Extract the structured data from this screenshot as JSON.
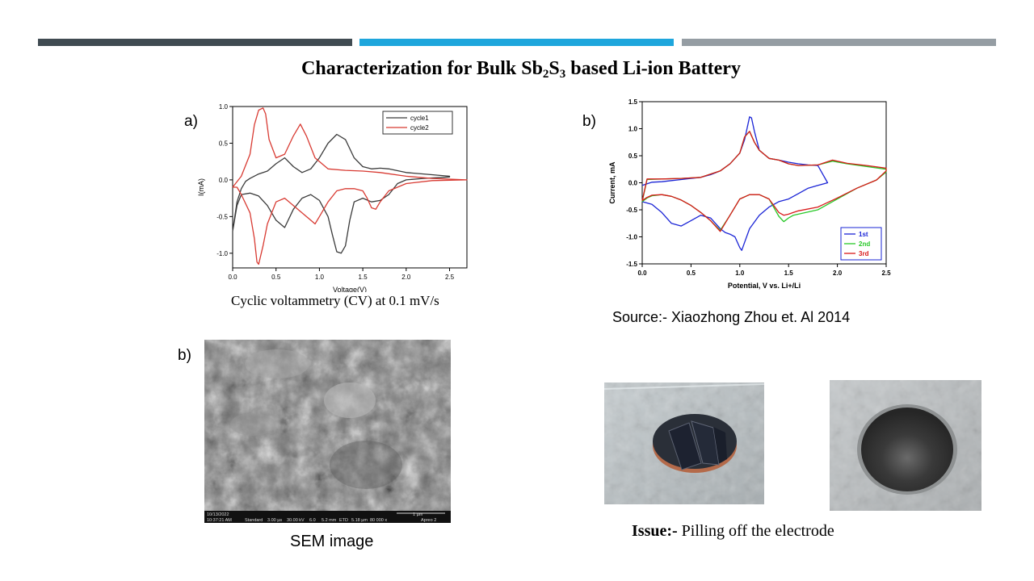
{
  "colors": {
    "bar1": "#404b52",
    "bar2": "#1ea6dc",
    "bar3": "#959da3",
    "cycle1": "#3a3a3a",
    "cycle2": "#d83a32",
    "run1": "#1a24d6",
    "run2": "#28c828",
    "run3": "#d81818"
  },
  "title": {
    "main": "Characterization for Bulk Sb",
    "sub1": "2",
    "mid": "S",
    "sub2": "3",
    "tail": " based Li-ion Battery"
  },
  "labels": {
    "a": "a)",
    "b1": "b)",
    "b2": "b)"
  },
  "captions": {
    "cv": "Cyclic voltammetry (CV) at 0.1 mV/s",
    "source": "Source:- Xiaozhong Zhou et. Al 2014",
    "sem": "SEM image",
    "issue_bold": "Issue:-",
    "issue_text": " Pilling off the electrode"
  },
  "sem_bar": {
    "date": "10/13/2022",
    "time": "10:37:21 AM",
    "mode": "Standard",
    "dwell": "3.00 µs",
    "hv": "30.00 kV",
    "spot": "6.0",
    "wd": "5.2 mm",
    "det": "ETD",
    "hfw": "5.18 µm",
    "mag": "80 000 x",
    "scale": "1 µm",
    "brand": "Apreo 2"
  },
  "chart_data": [
    {
      "type": "line",
      "xlabel": "Voltage(V)",
      "ylabel": "I(mA)",
      "xlim": [
        0,
        2.7
      ],
      "ylim": [
        -1.2,
        1.0
      ],
      "xticks": [
        "0.0",
        "0.5",
        "1.0",
        "1.5",
        "2.0",
        "2.5"
      ],
      "yticks": [
        "1.0",
        "0.5",
        "0.0",
        "-0.5",
        "-1.0"
      ],
      "legend": "top-right",
      "series": [
        {
          "name": "cycle1",
          "x": [
            0,
            0.05,
            0.1,
            0.15,
            0.2,
            0.3,
            0.4,
            0.5,
            0.6,
            0.7,
            0.8,
            0.9,
            1.0,
            1.1,
            1.2,
            1.3,
            1.4,
            1.5,
            1.6,
            1.7,
            1.8,
            2.0,
            2.2,
            2.5,
            2.5,
            2.2,
            2.0,
            1.9,
            1.8,
            1.7,
            1.6,
            1.5,
            1.4,
            1.35,
            1.3,
            1.25,
            1.2,
            1.15,
            1.1,
            1.0,
            0.9,
            0.8,
            0.7,
            0.6,
            0.5,
            0.4,
            0.3,
            0.2,
            0.1,
            0.05,
            0
          ],
          "y": [
            -0.7,
            -0.3,
            -0.12,
            -0.02,
            0.02,
            0.08,
            0.12,
            0.22,
            0.3,
            0.18,
            0.1,
            0.15,
            0.3,
            0.5,
            0.62,
            0.55,
            0.3,
            0.18,
            0.15,
            0.16,
            0.15,
            0.1,
            0.08,
            0.05,
            0.04,
            0.02,
            0.0,
            -0.05,
            -0.2,
            -0.28,
            -0.3,
            -0.25,
            -0.3,
            -0.55,
            -0.9,
            -1.0,
            -0.98,
            -0.75,
            -0.5,
            -0.28,
            -0.2,
            -0.25,
            -0.4,
            -0.65,
            -0.55,
            -0.35,
            -0.22,
            -0.18,
            -0.2,
            -0.35,
            -0.7
          ]
        },
        {
          "name": "cycle2",
          "x": [
            0,
            0.1,
            0.2,
            0.25,
            0.3,
            0.35,
            0.38,
            0.42,
            0.5,
            0.6,
            0.7,
            0.78,
            0.85,
            0.95,
            1.1,
            1.3,
            1.5,
            1.7,
            2.0,
            2.3,
            2.7,
            2.7,
            2.3,
            2.0,
            1.8,
            1.7,
            1.65,
            1.6,
            1.55,
            1.5,
            1.4,
            1.3,
            1.2,
            1.1,
            1.0,
            0.95,
            0.9,
            0.8,
            0.7,
            0.6,
            0.5,
            0.4,
            0.35,
            0.3,
            0.28,
            0.25,
            0.2,
            0.1,
            0.05,
            0
          ],
          "y": [
            -0.1,
            0.05,
            0.35,
            0.75,
            0.95,
            0.98,
            0.9,
            0.55,
            0.3,
            0.35,
            0.6,
            0.76,
            0.6,
            0.3,
            0.15,
            0.13,
            0.12,
            0.1,
            0.05,
            0.02,
            0.0,
            0.0,
            -0.01,
            -0.05,
            -0.15,
            -0.3,
            -0.4,
            -0.38,
            -0.25,
            -0.15,
            -0.12,
            -0.12,
            -0.15,
            -0.3,
            -0.5,
            -0.6,
            -0.55,
            -0.45,
            -0.35,
            -0.25,
            -0.3,
            -0.6,
            -0.9,
            -1.15,
            -1.12,
            -0.8,
            -0.45,
            -0.2,
            -0.1,
            -0.1
          ]
        }
      ]
    },
    {
      "type": "line",
      "xlabel": "Potential, V vs. Li+/Li",
      "ylabel": "Current, mA",
      "xlim": [
        0,
        2.5
      ],
      "ylim": [
        -1.5,
        1.5
      ],
      "xticks": [
        "0.0",
        "0.5",
        "1.0",
        "1.5",
        "2.0",
        "2.5"
      ],
      "yticks": [
        "1.5",
        "1.0",
        "0.5",
        "0.0",
        "-0.5",
        "-1.0",
        "-1.5"
      ],
      "legend": "bottom-right",
      "series": [
        {
          "name": "1st",
          "x": [
            0,
            0.1,
            0.2,
            0.3,
            0.4,
            0.5,
            0.6,
            0.7,
            0.8,
            0.85,
            0.9,
            0.95,
            1.0,
            1.02,
            1.05,
            1.1,
            1.2,
            1.3,
            1.4,
            1.5,
            1.6,
            1.7,
            1.8,
            1.9,
            1.9,
            1.8,
            1.7,
            1.6,
            1.5,
            1.4,
            1.3,
            1.2,
            1.15,
            1.12,
            1.1,
            1.05,
            1.0,
            0.9,
            0.8,
            0.7,
            0.6,
            0.5,
            0.4,
            0.3,
            0.2,
            0.1,
            0
          ],
          "y": [
            -0.35,
            -0.4,
            -0.55,
            -0.75,
            -0.8,
            -0.7,
            -0.6,
            -0.65,
            -0.85,
            -0.92,
            -0.95,
            -1.0,
            -1.2,
            -1.25,
            -1.1,
            -0.85,
            -0.6,
            -0.45,
            -0.35,
            -0.3,
            -0.2,
            -0.1,
            -0.05,
            0.0,
            0.0,
            0.32,
            0.33,
            0.35,
            0.38,
            0.42,
            0.45,
            0.6,
            0.95,
            1.2,
            1.22,
            0.8,
            0.55,
            0.35,
            0.22,
            0.15,
            0.1,
            0.08,
            0.06,
            0.04,
            0.02,
            0.01,
            -0.05
          ]
        },
        {
          "name": "2nd",
          "x": [
            0,
            0.05,
            0.1,
            0.2,
            0.3,
            0.4,
            0.5,
            0.6,
            0.7,
            0.8,
            0.9,
            1.0,
            1.1,
            1.2,
            1.3,
            1.4,
            1.45,
            1.5,
            1.55,
            1.6,
            1.8,
            2.0,
            2.2,
            2.4,
            2.5,
            2.5,
            2.3,
            2.1,
            1.95,
            1.8,
            1.6,
            1.5,
            1.4,
            1.3,
            1.2,
            1.15,
            1.1,
            1.05,
            1.0,
            0.9,
            0.8,
            0.6,
            0.4,
            0.2,
            0.05,
            0
          ],
          "y": [
            -0.35,
            -0.28,
            -0.24,
            -0.22,
            -0.25,
            -0.32,
            -0.42,
            -0.55,
            -0.7,
            -0.88,
            -0.6,
            -0.3,
            -0.22,
            -0.22,
            -0.3,
            -0.62,
            -0.72,
            -0.65,
            -0.6,
            -0.58,
            -0.5,
            -0.3,
            -0.1,
            0.05,
            0.2,
            0.25,
            0.3,
            0.35,
            0.4,
            0.33,
            0.32,
            0.35,
            0.42,
            0.45,
            0.6,
            0.75,
            0.95,
            0.85,
            0.55,
            0.35,
            0.22,
            0.1,
            0.08,
            0.07,
            0.06,
            -0.35
          ]
        },
        {
          "name": "3rd",
          "x": [
            0,
            0.05,
            0.1,
            0.2,
            0.3,
            0.4,
            0.5,
            0.6,
            0.7,
            0.8,
            0.9,
            1.0,
            1.1,
            1.2,
            1.3,
            1.4,
            1.45,
            1.5,
            1.55,
            1.6,
            1.8,
            2.0,
            2.2,
            2.4,
            2.5,
            2.5,
            2.3,
            2.1,
            1.95,
            1.8,
            1.6,
            1.5,
            1.4,
            1.3,
            1.2,
            1.15,
            1.1,
            1.05,
            1.0,
            0.9,
            0.8,
            0.6,
            0.4,
            0.2,
            0.05,
            0
          ],
          "y": [
            -0.33,
            -0.27,
            -0.23,
            -0.22,
            -0.25,
            -0.32,
            -0.42,
            -0.55,
            -0.7,
            -0.9,
            -0.6,
            -0.3,
            -0.22,
            -0.22,
            -0.3,
            -0.55,
            -0.6,
            -0.58,
            -0.55,
            -0.52,
            -0.45,
            -0.28,
            -0.1,
            0.05,
            0.22,
            0.27,
            0.32,
            0.36,
            0.42,
            0.33,
            0.32,
            0.35,
            0.42,
            0.45,
            0.6,
            0.75,
            0.95,
            0.85,
            0.55,
            0.35,
            0.22,
            0.1,
            0.08,
            0.07,
            0.07,
            -0.33
          ]
        }
      ]
    }
  ]
}
